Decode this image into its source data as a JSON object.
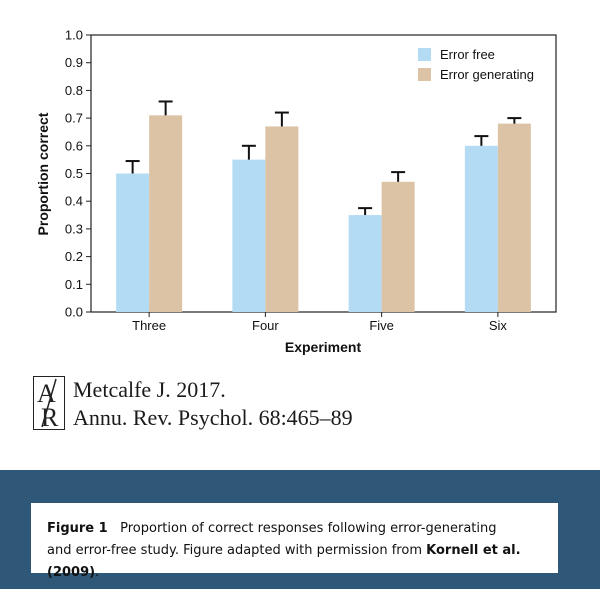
{
  "chart_data": {
    "type": "bar",
    "categories": [
      "Three",
      "Four",
      "Five",
      "Six"
    ],
    "series": [
      {
        "name": "Error free",
        "color": "#b3dcf4",
        "values": [
          0.5,
          0.55,
          0.35,
          0.6
        ],
        "errors": [
          0.045,
          0.05,
          0.025,
          0.035
        ]
      },
      {
        "name": "Error generating",
        "color": "#dcc3a5",
        "values": [
          0.71,
          0.67,
          0.47,
          0.68
        ],
        "errors": [
          0.05,
          0.05,
          0.035,
          0.02
        ]
      }
    ],
    "xlabel": "Experiment",
    "ylabel": "Proportion correct",
    "ylim": [
      0.0,
      1.0
    ],
    "yticks": [
      "0.0",
      "0.1",
      "0.2",
      "0.3",
      "0.4",
      "0.5",
      "0.6",
      "0.7",
      "0.8",
      "0.9",
      "1.0"
    ],
    "legend_position": "top-right"
  },
  "citation": {
    "logo_letters": "AR",
    "line1": "Metcalfe J. 2017.",
    "line2": "Annu. Rev. Psychol. 68:465–89"
  },
  "caption": {
    "label": "Figure 1",
    "text_part1": "Proportion of correct responses following error-generating",
    "text_part2": "and error-free study. Figure adapted with permission from",
    "link_text": "Kornell et al. (2009)",
    "end_punct": "."
  }
}
